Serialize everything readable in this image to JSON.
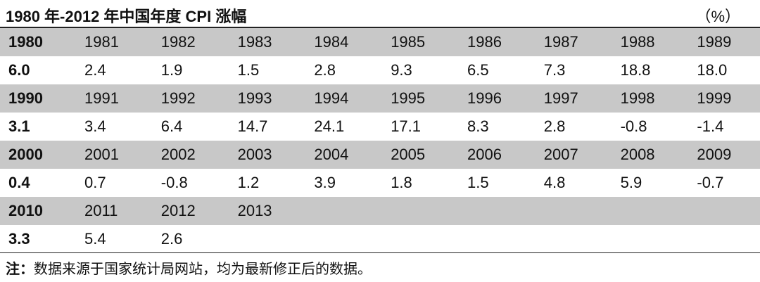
{
  "header": {
    "title": "1980 年-2012 年中国年度 CPI 涨幅",
    "unit": "（%）"
  },
  "table": {
    "rows": [
      [
        "1980",
        "1981",
        "1982",
        "1983",
        "1984",
        "1985",
        "1986",
        "1987",
        "1988",
        "1989"
      ],
      [
        "6.0",
        "2.4",
        "1.9",
        "1.5",
        "2.8",
        "9.3",
        "6.5",
        "7.3",
        "18.8",
        "18.0"
      ],
      [
        "1990",
        "1991",
        "1992",
        "1993",
        "1994",
        "1995",
        "1996",
        "1997",
        "1998",
        "1999"
      ],
      [
        "3.1",
        "3.4",
        "6.4",
        "14.7",
        "24.1",
        "17.1",
        "8.3",
        "2.8",
        "-0.8",
        "-1.4"
      ],
      [
        "2000",
        "2001",
        "2002",
        "2003",
        "2004",
        "2005",
        "2006",
        "2007",
        "2008",
        "2009"
      ],
      [
        "0.4",
        "0.7",
        "-0.8",
        "1.2",
        "3.9",
        "1.8",
        "1.5",
        "4.8",
        "5.9",
        "-0.7"
      ],
      [
        "2010",
        "2011",
        "2012",
        "2013"
      ],
      [
        "3.3",
        "5.4",
        "2.6"
      ]
    ]
  },
  "note": {
    "label": "注：",
    "text": "数据来源于国家统计局网站，均为最新修正后的数据。"
  }
}
